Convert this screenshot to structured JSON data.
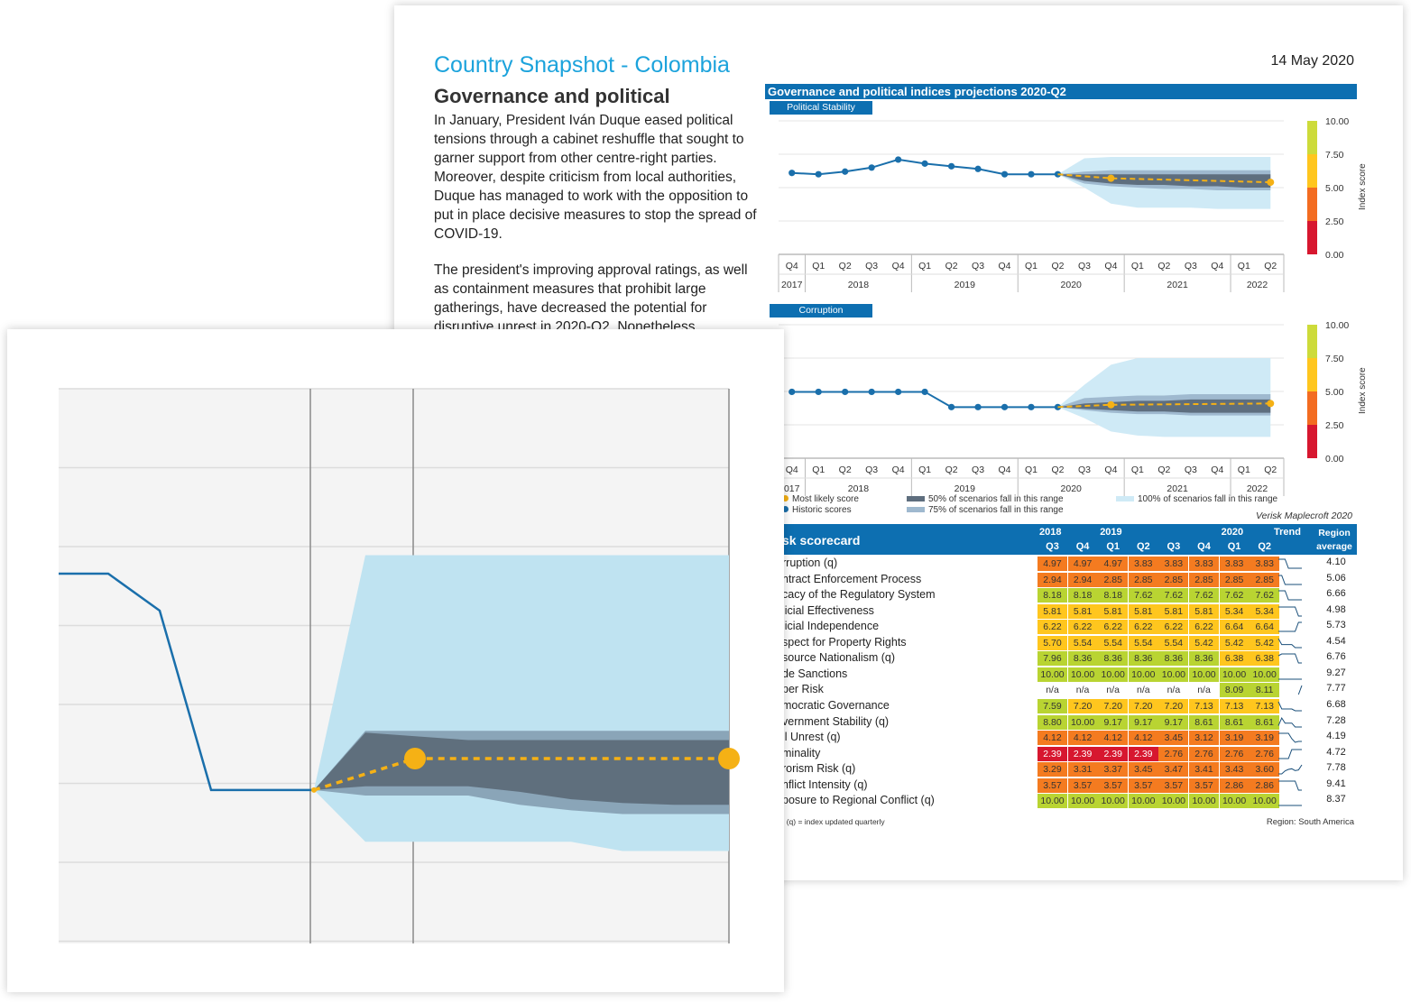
{
  "document": {
    "title": "Country Snapshot - Colombia",
    "date": "14 May 2020",
    "section_title": "Governance and political",
    "paragraph1": "In January, President Iván Duque eased political tensions through a cabinet reshuffle that sought to garner support from other centre-right parties. Moreover, despite criticism from local authorities, Duque has managed to work with the opposition to put in place decisive measures to stop the spread of COVID-19.",
    "paragraph2": "The president's improving approval ratings, as well as containment measures that prohibit large gatherings, have decreased the potential for disruptive unrest in 2020-Q2. Nonetheless,"
  },
  "colors": {
    "accent": "#1ca3dc",
    "header_blue": "#0d6fb1",
    "historic_line": "#1a6fab",
    "most_likely": "#f5b115",
    "band_50": "#5e6e7e",
    "band_75": "#9fb9cf",
    "band_100": "#cfeaf6"
  },
  "chart_data": [
    {
      "type": "line",
      "title": "Governance and political indices projections 2020-Q2",
      "subtitle": "Political Stability",
      "ylabel": "Index score",
      "ylim": [
        0,
        10
      ],
      "yticks": [
        "10.00",
        "7.50",
        "5.00",
        "2.50",
        "0.00"
      ],
      "quarters": [
        "Q4",
        "Q1",
        "Q2",
        "Q3",
        "Q4",
        "Q1",
        "Q2",
        "Q3",
        "Q4",
        "Q1",
        "Q2",
        "Q3",
        "Q4",
        "Q1",
        "Q2",
        "Q3",
        "Q4",
        "Q1",
        "Q2"
      ],
      "years": [
        {
          "label": "2017",
          "span": 1
        },
        {
          "label": "2018",
          "span": 4
        },
        {
          "label": "2019",
          "span": 4
        },
        {
          "label": "2020",
          "span": 4
        },
        {
          "label": "2021",
          "span": 4
        },
        {
          "label": "2022",
          "span": 2
        }
      ],
      "historic": [
        6.1,
        6.0,
        6.2,
        6.5,
        7.1,
        6.8,
        6.6,
        6.4,
        6.0,
        6.0,
        6.0
      ],
      "most_likely": [
        {
          "i": 10,
          "v": 6.0
        },
        {
          "i": 12,
          "v": 5.7
        },
        {
          "i": 18,
          "v": 5.4
        }
      ],
      "band_50": {
        "upper": [
          6.0,
          6.0,
          6.0,
          6.0,
          6.0,
          6.0,
          6.0,
          6.0,
          6.0
        ],
        "lower": [
          6.0,
          5.5,
          5.3,
          5.2,
          5.2,
          5.1,
          5.1,
          5.0,
          5.0
        ]
      },
      "band_75": {
        "upper": [
          6.0,
          6.2,
          6.3,
          6.3,
          6.3,
          6.3,
          6.3,
          6.3,
          6.3
        ],
        "lower": [
          6.0,
          5.3,
          5.1,
          5.0,
          4.9,
          4.9,
          4.8,
          4.8,
          4.8
        ]
      },
      "band_100": {
        "upper": [
          6.0,
          7.2,
          7.3,
          7.3,
          7.3,
          7.3,
          7.3,
          7.3,
          7.3
        ],
        "lower": [
          6.0,
          5.0,
          3.8,
          3.5,
          3.5,
          3.5,
          3.4,
          3.4,
          3.4
        ]
      }
    },
    {
      "type": "line",
      "subtitle": "Corruption",
      "ylabel": "Index score",
      "ylim": [
        0,
        10
      ],
      "yticks": [
        "10.00",
        "7.50",
        "5.00",
        "2.50",
        "0.00"
      ],
      "quarters": [
        "Q4",
        "Q1",
        "Q2",
        "Q3",
        "Q4",
        "Q1",
        "Q2",
        "Q3",
        "Q4",
        "Q1",
        "Q2",
        "Q3",
        "Q4",
        "Q1",
        "Q2",
        "Q3",
        "Q4",
        "Q1",
        "Q2"
      ],
      "years": [
        {
          "label": "017",
          "span": 1
        },
        {
          "label": "2018",
          "span": 4
        },
        {
          "label": "2019",
          "span": 4
        },
        {
          "label": "2020",
          "span": 4
        },
        {
          "label": "2021",
          "span": 4
        },
        {
          "label": "2022",
          "span": 2
        }
      ],
      "historic": [
        4.97,
        4.97,
        4.97,
        4.97,
        4.97,
        4.97,
        3.83,
        3.83,
        3.83,
        3.83,
        3.83
      ],
      "most_likely": [
        {
          "i": 10,
          "v": 3.83
        },
        {
          "i": 12,
          "v": 4.0
        },
        {
          "i": 18,
          "v": 4.1
        }
      ],
      "band_50": {
        "upper": [
          3.83,
          4.1,
          4.2,
          4.3,
          4.3,
          4.4,
          4.4,
          4.4,
          4.4
        ],
        "lower": [
          3.83,
          3.7,
          3.6,
          3.5,
          3.5,
          3.4,
          3.4,
          3.4,
          3.4
        ]
      },
      "band_75": {
        "upper": [
          3.83,
          4.5,
          4.6,
          4.7,
          4.7,
          4.8,
          4.8,
          4.8,
          4.8
        ],
        "lower": [
          3.83,
          3.6,
          3.4,
          3.3,
          3.3,
          3.2,
          3.2,
          3.2,
          3.2
        ]
      },
      "band_100": {
        "upper": [
          3.83,
          5.5,
          7.0,
          7.5,
          7.5,
          7.5,
          7.5,
          7.5,
          7.5
        ],
        "lower": [
          3.83,
          3.0,
          2.0,
          1.7,
          1.6,
          1.6,
          1.6,
          1.6,
          1.6
        ]
      }
    }
  ],
  "legend": {
    "most_likely": "Most likely score",
    "historic": "Historic scores",
    "band50": "50% of scenarios fall in this range",
    "band75": "75% of scenarios fall in this range",
    "band100": "100% of scenarios fall in this range",
    "source": "Verisk Maplecroft 2020"
  },
  "scorecard": {
    "title": "sk scorecard",
    "years": [
      {
        "label": "2018",
        "col": 0
      },
      {
        "label": "2019",
        "col": 2
      },
      {
        "label": "2020",
        "col": 6
      }
    ],
    "quarters": [
      "Q3",
      "Q4",
      "Q1",
      "Q2",
      "Q3",
      "Q4",
      "Q1",
      "Q2"
    ],
    "trend_header": "Trend",
    "region_header": "Region average",
    "rows": [
      {
        "name": "rruption (q)",
        "values": [
          "4.97",
          "4.97",
          "4.97",
          "3.83",
          "3.83",
          "3.83",
          "3.83",
          "3.83"
        ],
        "region": "4.10",
        "trend": [
          5,
          5,
          5,
          3.8,
          3.8,
          3.8,
          3.8,
          3.8
        ]
      },
      {
        "name": "ntract Enforcement Process",
        "values": [
          "2.94",
          "2.94",
          "2.85",
          "2.85",
          "2.85",
          "2.85",
          "2.85",
          "2.85"
        ],
        "region": "5.06",
        "trend": [
          3,
          3,
          2.8,
          2.8,
          2.8,
          2.8,
          2.8,
          2.8
        ]
      },
      {
        "name": "cacy of the Regulatory System",
        "values": [
          "8.18",
          "8.18",
          "8.18",
          "7.62",
          "7.62",
          "7.62",
          "7.62",
          "7.62"
        ],
        "region": "6.66",
        "trend": [
          8.2,
          8.2,
          8.2,
          7.6,
          7.6,
          7.6,
          7.6,
          7.6
        ]
      },
      {
        "name": "licial Effectiveness",
        "values": [
          "5.81",
          "5.81",
          "5.81",
          "5.81",
          "5.81",
          "5.81",
          "5.34",
          "5.34"
        ],
        "region": "4.98",
        "trend": [
          5.8,
          5.8,
          5.8,
          5.8,
          5.8,
          5.8,
          5.3,
          5.3
        ]
      },
      {
        "name": "licial Independence",
        "values": [
          "6.22",
          "6.22",
          "6.22",
          "6.22",
          "6.22",
          "6.22",
          "6.64",
          "6.64"
        ],
        "region": "5.73",
        "trend": [
          6.2,
          6.2,
          6.2,
          6.2,
          6.2,
          6.2,
          6.6,
          6.6
        ]
      },
      {
        "name": "spect for Property Rights",
        "values": [
          "5.70",
          "5.54",
          "5.54",
          "5.54",
          "5.54",
          "5.42",
          "5.42",
          "5.42"
        ],
        "region": "4.54",
        "trend": [
          5.7,
          5.5,
          5.5,
          5.5,
          5.5,
          5.4,
          5.4,
          5.4
        ]
      },
      {
        "name": "source Nationalism (q)",
        "values": [
          "7.96",
          "8.36",
          "8.36",
          "8.36",
          "8.36",
          "8.36",
          "6.38",
          "6.38"
        ],
        "region": "6.76",
        "trend": [
          8,
          8.4,
          8.4,
          8.4,
          8.4,
          8.4,
          6.4,
          6.4
        ]
      },
      {
        "name": "de Sanctions",
        "values": [
          "10.00",
          "10.00",
          "10.00",
          "10.00",
          "10.00",
          "10.00",
          "10.00",
          "10.00"
        ],
        "region": "9.27",
        "trend": [
          10,
          10,
          10,
          10,
          10,
          10,
          10,
          10
        ]
      },
      {
        "name": "per Risk",
        "values": [
          "n/a",
          "n/a",
          "n/a",
          "n/a",
          "n/a",
          "n/a",
          "8.09",
          "8.11"
        ],
        "region": "7.77",
        "trend": [
          0,
          0,
          0,
          0,
          0,
          0,
          8.09,
          8.11
        ]
      },
      {
        "name": "mocratic Governance",
        "values": [
          "7.59",
          "7.20",
          "7.20",
          "7.20",
          "7.20",
          "7.13",
          "7.13",
          "7.13"
        ],
        "region": "6.68",
        "trend": [
          7.6,
          7.2,
          7.2,
          7.2,
          7.2,
          7.1,
          7.1,
          7.1
        ]
      },
      {
        "name": "vernment Stability (q)",
        "values": [
          "8.80",
          "10.00",
          "9.17",
          "9.17",
          "9.17",
          "8.61",
          "8.61",
          "8.61"
        ],
        "region": "7.28",
        "trend": [
          8.8,
          10,
          9.2,
          9.2,
          9.2,
          8.6,
          8.6,
          8.6
        ]
      },
      {
        "name": "il Unrest (q)",
        "values": [
          "4.12",
          "4.12",
          "4.12",
          "4.12",
          "3.45",
          "3.12",
          "3.19",
          "3.19"
        ],
        "region": "4.19",
        "trend": [
          4.1,
          4.1,
          4.1,
          4.1,
          3.5,
          3.1,
          3.2,
          3.2
        ]
      },
      {
        "name": "minality",
        "values": [
          "2.39",
          "2.39",
          "2.39",
          "2.39",
          "2.76",
          "2.76",
          "2.76",
          "2.76"
        ],
        "region": "4.72",
        "trend": [
          2.4,
          2.4,
          2.4,
          2.4,
          2.8,
          2.8,
          2.8,
          2.8
        ]
      },
      {
        "name": "rorism Risk (q)",
        "values": [
          "3.29",
          "3.31",
          "3.37",
          "3.45",
          "3.47",
          "3.41",
          "3.43",
          "3.60"
        ],
        "region": "7.78",
        "trend": [
          3.3,
          3.3,
          3.4,
          3.45,
          3.47,
          3.41,
          3.43,
          3.6
        ]
      },
      {
        "name": "nflict Intensity (q)",
        "values": [
          "3.57",
          "3.57",
          "3.57",
          "3.57",
          "3.57",
          "3.57",
          "2.86",
          "2.86"
        ],
        "region": "9.41",
        "trend": [
          3.6,
          3.6,
          3.6,
          3.6,
          3.6,
          3.6,
          2.9,
          2.9
        ]
      },
      {
        "name": "posure to Regional Conflict (q)",
        "values": [
          "10.00",
          "10.00",
          "10.00",
          "10.00",
          "10.00",
          "10.00",
          "10.00",
          "10.00"
        ],
        "region": "8.37",
        "trend": [
          10,
          10,
          10,
          10,
          10,
          10,
          10,
          10
        ]
      }
    ],
    "footnote": ": (q) = index updated quarterly",
    "region_note": "Region: South America"
  },
  "zoom_chart": {
    "ylim": [
      3,
      6
    ],
    "historic": [
      5.0,
      5.0,
      4.8,
      3.83,
      3.83,
      3.83
    ],
    "most_likely": [
      {
        "i": 5,
        "v": 3.83
      },
      {
        "i": 7,
        "v": 4.0
      },
      {
        "i": 15,
        "v": 4.0
      }
    ],
    "band_100": {
      "upper": [
        3.83,
        5.1,
        5.1,
        5.1,
        5.1,
        5.1,
        5.1,
        5.1,
        5.1,
        5.1,
        5.1
      ],
      "lower": [
        3.83,
        3.55,
        3.55,
        3.55,
        3.55,
        3.55,
        3.5,
        3.5,
        3.5,
        3.5,
        3.5
      ]
    },
    "band_75": {
      "upper": [
        3.83,
        4.15,
        4.15,
        4.15,
        4.15,
        4.15,
        4.15,
        4.15,
        4.15,
        4.15,
        4.15
      ],
      "lower": [
        3.83,
        3.8,
        3.8,
        3.8,
        3.75,
        3.72,
        3.7,
        3.7,
        3.7,
        3.7,
        3.7
      ]
    },
    "band_50": {
      "upper": [
        3.83,
        4.14,
        4.12,
        4.1,
        4.1,
        4.1,
        4.1,
        4.1,
        4.1,
        4.1,
        4.1
      ],
      "lower": [
        3.83,
        3.85,
        3.85,
        3.85,
        3.82,
        3.78,
        3.76,
        3.75,
        3.75,
        3.75,
        3.75
      ]
    }
  }
}
